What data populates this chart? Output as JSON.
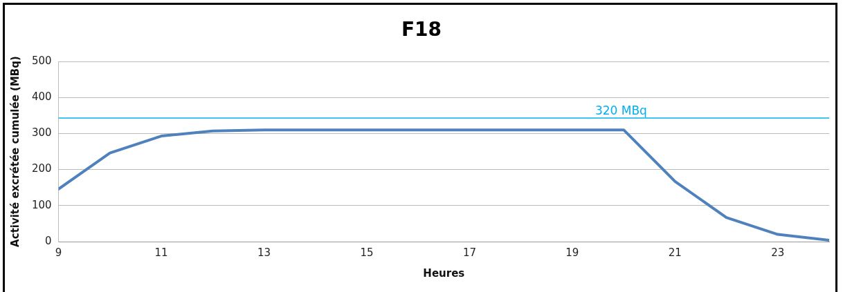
{
  "chart_data": {
    "type": "line",
    "title": "F18",
    "xlabel": "Heures",
    "ylabel": "Activité excrétée cumulée (MBq)",
    "x": [
      9,
      10,
      11,
      12,
      13,
      14,
      15,
      16,
      17,
      18,
      19,
      20,
      21,
      22,
      23,
      24
    ],
    "series": [
      {
        "color": "#4f81bd",
        "values": [
          146,
          246,
          293,
          307,
          310,
          310,
          310,
          310,
          310,
          310,
          310,
          310,
          167,
          67,
          20,
          4
        ]
      }
    ],
    "xlim": [
      9,
      24
    ],
    "xticks": [
      9,
      11,
      13,
      15,
      17,
      19,
      21,
      23
    ],
    "ylim": [
      0,
      500
    ],
    "yticks": [
      0,
      100,
      200,
      300,
      400,
      500
    ],
    "ref_lines": [
      {
        "axis": "y",
        "value": 343,
        "label": "320 MBq",
        "color": "#00b0f0"
      }
    ],
    "grid": "y",
    "legend": false,
    "marker": "none",
    "line_style": "solid"
  }
}
